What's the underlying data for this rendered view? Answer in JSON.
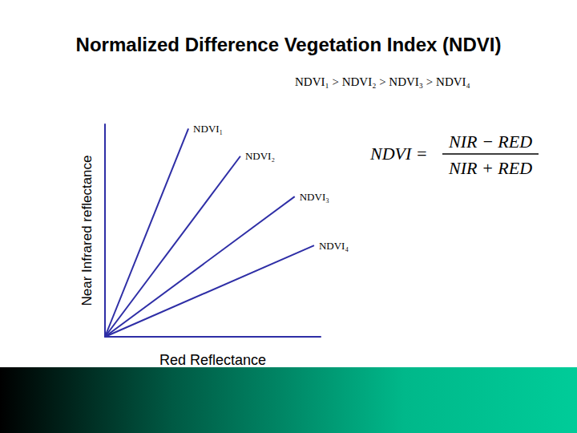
{
  "chart_data": {
    "type": "line",
    "title": "Normalized Difference Vegetation Index (NDVI)",
    "x_label": "Red Reflectance",
    "y_label": "Near Infrared reflectance",
    "annotations": {
      "ordering": "NDVI₁ > NDVI₂ > NDVI₃ > NDVI₄",
      "formula": {
        "lhs": "NDVI =",
        "numerator": "NIR − RED",
        "denominator": "NIR + RED"
      }
    },
    "series": [
      {
        "name": "NDVI₁",
        "x": [
          0,
          38.7
        ],
        "values": [
          0,
          98
        ]
      },
      {
        "name": "NDVI₂",
        "x": [
          0,
          62.8
        ],
        "values": [
          0,
          85
        ]
      },
      {
        "name": "NDVI₃",
        "x": [
          0,
          88
        ],
        "values": [
          0,
          66
        ]
      },
      {
        "name": "NDVI₄",
        "x": [
          0,
          97
        ],
        "values": [
          0,
          43
        ]
      }
    ],
    "color": "#2e2ea6",
    "xlim": [
      0,
      100
    ],
    "ylim": [
      0,
      100
    ],
    "tick_labels": false,
    "grid": false
  }
}
